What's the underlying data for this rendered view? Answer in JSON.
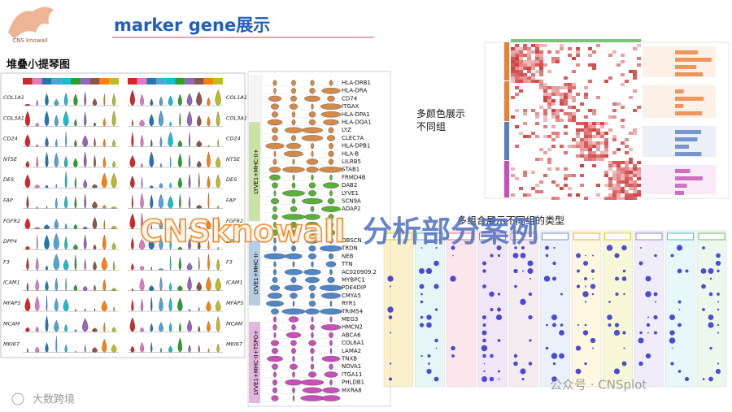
{
  "header": {
    "logo": "CNS knowall",
    "title": "marker gene展示"
  },
  "left_panel": {
    "title": "堆叠小提琴图",
    "genes": [
      "COL1A1",
      "COL3A1",
      "CD24",
      "NT5E",
      "DES",
      "FAP",
      "FGFR2",
      "DPP4",
      "F3",
      "ICAM1",
      "MFAP5",
      "MCAM",
      "MKI67"
    ]
  },
  "middle_panel": {
    "genes_top": [
      "HLA-DRB1",
      "HLA-DRA",
      "CD74",
      "ITGAX",
      "HLA-DPA1",
      "HLA-DQA1",
      "LYZ",
      "CLEC7A",
      "HLA-DPB1",
      "HLA-B",
      "LILRB5",
      "STAB1",
      "FRMD4B",
      "DAB2",
      "LYVE1",
      "SCN9A",
      "ADAP2"
    ],
    "genes_bottom": [
      "OBSCN",
      "TRDN",
      "NEB",
      "TTN",
      "AC020909.2",
      "MYBPC1",
      "PDE4DIP",
      "CMYA5",
      "RYR1",
      "TRIM54",
      "MEG3",
      "HMCN2",
      "ABCA6",
      "COL6A1",
      "LAMA2",
      "TNXB",
      "NOVA1",
      "ITGA11",
      "PHLDB1",
      "MXRA8"
    ],
    "groups": [
      "LYVE1+MHC-II+",
      "LYVE1+MHC-II-",
      "LYVE1+MHC-II+TSPO+"
    ]
  },
  "right_top": {
    "caption": "多颜色展示\n不同组"
  },
  "banner": {
    "brand": "CNSknowall",
    "text": "分析部分案例"
  },
  "right_bottom": {
    "caption": "多组合展示不同组的类型"
  },
  "watermarks": {
    "wechat": "公众号 · CNSplot",
    "corner": "大数跨境"
  }
}
